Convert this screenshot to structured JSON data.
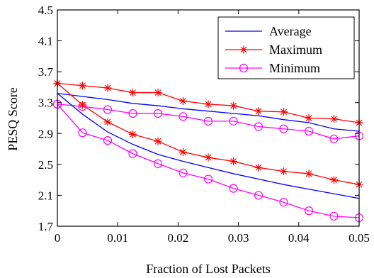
{
  "chart_data": {
    "type": "line",
    "xlabel": "Fraction of Lost Packets",
    "ylabel": "PESQ Score",
    "xlim": [
      0,
      0.05
    ],
    "ylim": [
      1.7,
      4.5
    ],
    "xticks": [
      0,
      0.01,
      0.02,
      0.03,
      0.04,
      0.05
    ],
    "xtick_labels": [
      "0",
      "0.01",
      "0.02",
      "0.03",
      "0.04",
      "0.05"
    ],
    "yticks": [
      1.7,
      2.1,
      2.5,
      2.9,
      3.3,
      3.7,
      4.1,
      4.5
    ],
    "ytick_labels": [
      "1.7",
      "2.1",
      "2.5",
      "2.9",
      "3.3",
      "3.7",
      "4.1",
      "4.5"
    ],
    "grid": false,
    "legend_position": "top-right",
    "x": [
      0,
      0.00417,
      0.00833,
      0.0125,
      0.01667,
      0.02083,
      0.025,
      0.02917,
      0.03333,
      0.0375,
      0.04167,
      0.04583,
      0.05
    ],
    "series": [
      {
        "name": "Average",
        "group": "upper",
        "color": "#0000ff",
        "marker": "none",
        "values": [
          3.42,
          3.38,
          3.34,
          3.29,
          3.26,
          3.22,
          3.19,
          3.16,
          3.13,
          3.08,
          3.04,
          2.96,
          2.93
        ]
      },
      {
        "name": "Maximum",
        "group": "upper",
        "color": "#ff0000",
        "marker": "star",
        "values": [
          3.55,
          3.52,
          3.49,
          3.43,
          3.43,
          3.32,
          3.28,
          3.26,
          3.19,
          3.18,
          3.1,
          3.09,
          3.04
        ]
      },
      {
        "name": "Minimum",
        "group": "upper",
        "color": "#ff00ff",
        "marker": "circle",
        "values": [
          3.28,
          3.25,
          3.21,
          3.16,
          3.16,
          3.12,
          3.06,
          3.06,
          2.99,
          2.96,
          2.93,
          2.83,
          2.87
        ]
      },
      {
        "name": "Average",
        "group": "lower",
        "color": "#0000ff",
        "marker": "none",
        "values": [
          3.42,
          3.15,
          2.92,
          2.76,
          2.63,
          2.54,
          2.46,
          2.38,
          2.31,
          2.24,
          2.18,
          2.12,
          2.06
        ]
      },
      {
        "name": "Maximum",
        "group": "lower",
        "color": "#ff0000",
        "marker": "star",
        "values": [
          3.55,
          3.27,
          3.05,
          2.89,
          2.8,
          2.66,
          2.59,
          2.54,
          2.46,
          2.41,
          2.38,
          2.3,
          2.24
        ]
      },
      {
        "name": "Minimum",
        "group": "lower",
        "color": "#ff00ff",
        "marker": "circle",
        "values": [
          3.28,
          2.91,
          2.81,
          2.64,
          2.51,
          2.39,
          2.31,
          2.19,
          2.1,
          2.01,
          1.9,
          1.83,
          1.81
        ]
      }
    ],
    "legend": [
      {
        "label": "Average",
        "color": "#0000ff",
        "marker": "none"
      },
      {
        "label": "Maximum",
        "color": "#ff0000",
        "marker": "star"
      },
      {
        "label": "Minimum",
        "color": "#ff00ff",
        "marker": "circle"
      }
    ]
  }
}
